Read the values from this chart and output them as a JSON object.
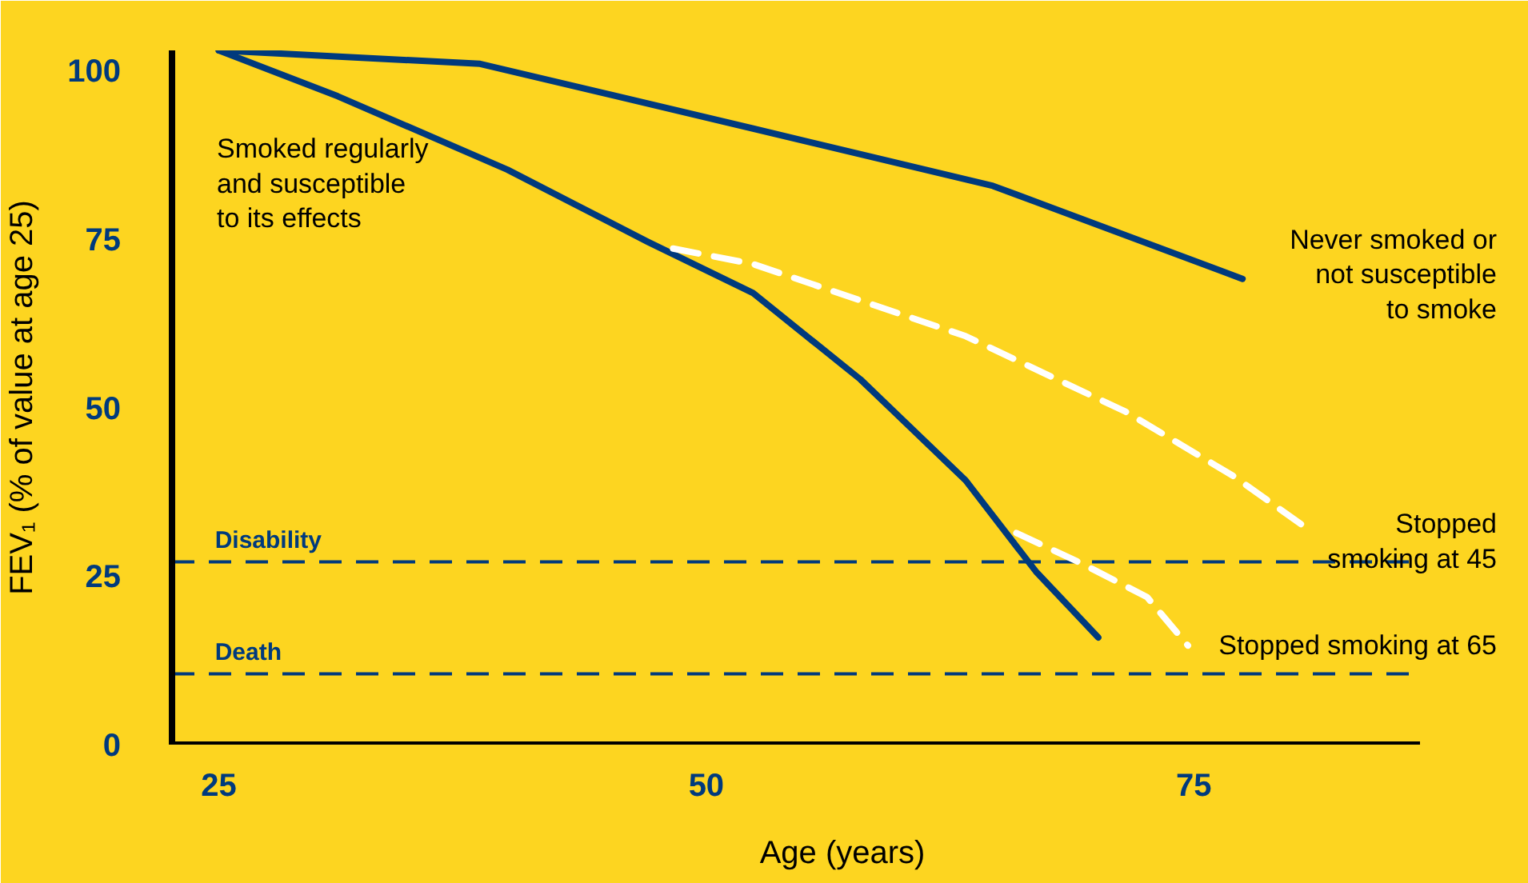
{
  "chart_data": {
    "type": "line",
    "xlabel": "Age (years)",
    "ylabel": "FEV₁ (% of value at age 25)",
    "xlim": [
      22.6,
      86.6
    ],
    "xticks": [
      25,
      50,
      75
    ],
    "ylim": [
      0,
      103
    ],
    "yticks": [
      0,
      25,
      50,
      75,
      100
    ],
    "grid": false,
    "legend": false,
    "marker": "none",
    "series": [
      {
        "name": "Never smoked or\nnot susceptible\nto smoke",
        "color": "#003a7d",
        "line_style": "solid",
        "x": [
          25,
          38.4,
          52.4,
          64.7,
          77.5
        ],
        "values": [
          103,
          101,
          91.4,
          82.9,
          69.1
        ]
      },
      {
        "name": "Smoked regularly\nand susceptible\nto its effects",
        "color": "#003a7d",
        "line_style": "solid",
        "x": [
          25,
          31.1,
          39.8,
          47,
          52.4,
          57.9,
          63.3,
          66.9,
          70.1
        ],
        "values": [
          103,
          96.2,
          85.3,
          74.6,
          67,
          54.2,
          39.2,
          25.7,
          15.9
        ]
      },
      {
        "name": "Stopped\nsmoking at 45",
        "color": "#ffffff",
        "line_style": "dashed",
        "x": [
          48.3,
          52.4,
          63.3,
          71.5,
          77,
          80.8
        ],
        "values": [
          73.6,
          71.3,
          60.6,
          49.4,
          39.9,
          32.1
        ]
      },
      {
        "name": "Stopped smoking at 65",
        "color": "#ffffff",
        "line_style": "dashed",
        "x": [
          65.9,
          69.3,
          72.6,
          74.7
        ],
        "values": [
          31.4,
          26.8,
          21.9,
          14.7
        ]
      }
    ],
    "ref_lines": [
      {
        "axis": "y",
        "value": 27.1,
        "label": "Disability",
        "color": "#003a7d",
        "line_style": "dashed"
      },
      {
        "axis": "y",
        "value": 10.5,
        "label": "Death",
        "color": "#003a7d",
        "line_style": "dashed"
      }
    ]
  }
}
